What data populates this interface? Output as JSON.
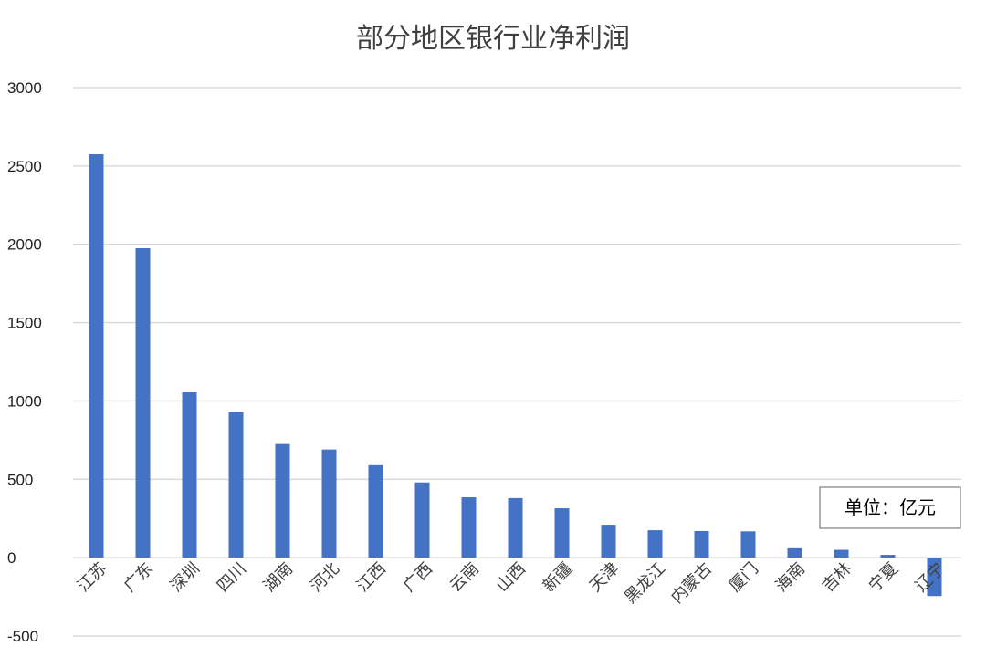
{
  "chart_data": {
    "type": "bar",
    "title": "部分地区银行业净利润",
    "unit_label": "单位：亿元",
    "categories": [
      "江苏",
      "广东",
      "深圳",
      "四川",
      "湖南",
      "河北",
      "江西",
      "广西",
      "云南",
      "山西",
      "新疆",
      "天津",
      "黑龙江",
      "内蒙古",
      "厦门",
      "海南",
      "吉林",
      "宁夏",
      "辽宁"
    ],
    "values": [
      2575,
      1975,
      1055,
      930,
      725,
      690,
      590,
      480,
      385,
      380,
      315,
      210,
      175,
      170,
      168,
      60,
      50,
      18,
      -245
    ],
    "ylim": [
      -500,
      3000
    ],
    "yticks": [
      3000,
      2500,
      2000,
      1500,
      1000,
      500,
      0,
      -500
    ],
    "grid": true,
    "legend": "none",
    "bar_color": "#4472c4"
  }
}
